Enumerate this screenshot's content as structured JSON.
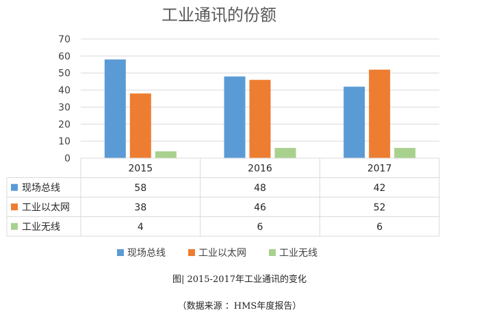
{
  "chart_data": {
    "type": "bar",
    "title": "工业通讯的份额",
    "categories": [
      "2015",
      "2016",
      "2017"
    ],
    "ylim": [
      0,
      70
    ],
    "yticks": [
      0,
      10,
      20,
      30,
      40,
      50,
      60,
      70
    ],
    "grid": true,
    "legend_position": "bottom",
    "data_table": true,
    "series": [
      {
        "name": "现场总线",
        "color": "#5b9bd5",
        "values": [
          58,
          48,
          42
        ]
      },
      {
        "name": "工业以太网",
        "color": "#ed7d31",
        "values": [
          38,
          46,
          52
        ]
      },
      {
        "name": "工业无线",
        "color": "#a9d18e",
        "values": [
          4,
          6,
          6
        ]
      }
    ]
  },
  "caption": "图| 2015-2017年工业通讯的变化",
  "source": "（数据来源 ：HMS年度报告）"
}
